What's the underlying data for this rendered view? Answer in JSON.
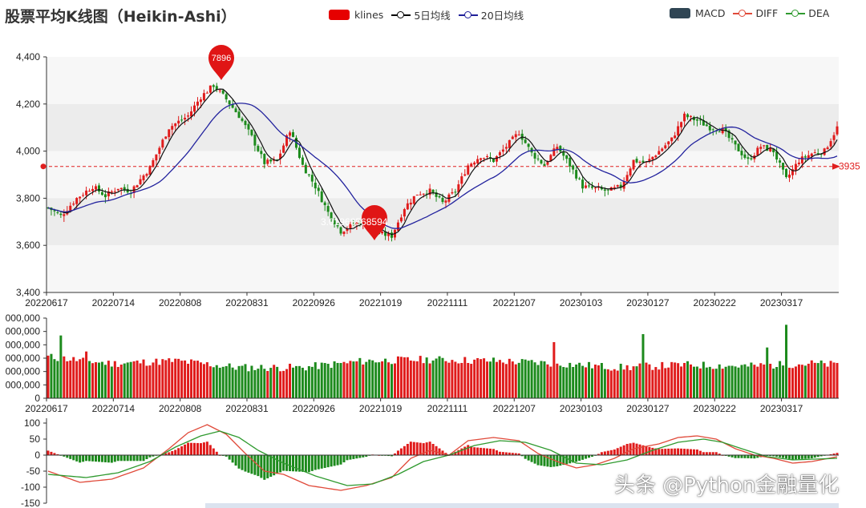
{
  "title": "股票平均K线图（Heikin-Ashi）",
  "legend_top": [
    {
      "name": "klines",
      "swatch": "rect",
      "color": "#e60000"
    },
    {
      "name": "5日均线",
      "swatch": "line",
      "color": "#000000"
    },
    {
      "name": "20日均线",
      "swatch": "line",
      "color": "#1f1f99"
    }
  ],
  "legend_right": [
    {
      "name": "MACD",
      "swatch": "rect",
      "color": "#2f4554"
    },
    {
      "name": "DIFF",
      "swatch": "line",
      "color": "#e04a3a"
    },
    {
      "name": "DEA",
      "swatch": "line",
      "color": "#2f9a2f"
    }
  ],
  "watermark": "头条 @Python金融量化",
  "chart_data": {
    "type": "candlestick",
    "x_tick_labels": [
      "20220617",
      "20220714",
      "20220808",
      "20220831",
      "20220926",
      "20221019",
      "20221111",
      "20221207",
      "20230103",
      "20230127",
      "20230222",
      "20230317"
    ],
    "price_axis": {
      "ticks": [
        "3,400",
        "3,600",
        "3,800",
        "4,000",
        "4,200",
        "4,400"
      ],
      "ylim": [
        3400,
        4400
      ]
    },
    "volume_axis": {
      "ticks": [
        "0",
        "000,000",
        "000,000",
        "000,000",
        "000,000",
        "000,000",
        "000,000"
      ],
      "ylim": [
        0,
        600
      ]
    },
    "macd_axis": {
      "ticks": [
        "100",
        "50",
        "0",
        "-50",
        "-100",
        "-150"
      ],
      "ylim": [
        -150,
        100
      ]
    },
    "annotations": {
      "max_point": "7896",
      "min_point": "",
      "markline_value": "3935",
      "overlay_text": "3.01968568594..."
    },
    "price_anchors": [
      [
        0,
        3760
      ],
      [
        4,
        3725
      ],
      [
        9,
        3800
      ],
      [
        14,
        3850
      ],
      [
        18,
        3810
      ],
      [
        22,
        3845
      ],
      [
        26,
        3830
      ],
      [
        32,
        3930
      ],
      [
        38,
        4100
      ],
      [
        44,
        4150
      ],
      [
        48,
        4230
      ],
      [
        52,
        4280
      ],
      [
        56,
        4220
      ],
      [
        60,
        4150
      ],
      [
        64,
        4060
      ],
      [
        68,
        3950
      ],
      [
        72,
        3960
      ],
      [
        76,
        4090
      ],
      [
        80,
        3940
      ],
      [
        84,
        3850
      ],
      [
        88,
        3740
      ],
      [
        92,
        3660
      ],
      [
        96,
        3690
      ],
      [
        100,
        3700
      ],
      [
        104,
        3650
      ],
      [
        108,
        3640
      ],
      [
        112,
        3760
      ],
      [
        116,
        3820
      ],
      [
        120,
        3830
      ],
      [
        124,
        3780
      ],
      [
        128,
        3830
      ],
      [
        132,
        3940
      ],
      [
        136,
        3980
      ],
      [
        140,
        3960
      ],
      [
        144,
        4020
      ],
      [
        148,
        4080
      ],
      [
        152,
        3990
      ],
      [
        156,
        3940
      ],
      [
        160,
        4020
      ],
      [
        164,
        3940
      ],
      [
        168,
        3850
      ],
      [
        172,
        3840
      ],
      [
        176,
        3830
      ],
      [
        180,
        3850
      ],
      [
        184,
        3960
      ],
      [
        188,
        3950
      ],
      [
        192,
        4000
      ],
      [
        196,
        4050
      ],
      [
        200,
        4150
      ],
      [
        204,
        4130
      ],
      [
        208,
        4100
      ],
      [
        212,
        4090
      ],
      [
        216,
        4020
      ],
      [
        220,
        3960
      ],
      [
        224,
        4020
      ],
      [
        228,
        4000
      ],
      [
        232,
        3880
      ],
      [
        236,
        3960
      ],
      [
        240,
        3990
      ],
      [
        244,
        4000
      ],
      [
        248,
        4100
      ]
    ],
    "volume_anchors": [
      [
        0,
        310
      ],
      [
        20,
        260
      ],
      [
        40,
        280
      ],
      [
        60,
        230
      ],
      [
        80,
        230
      ],
      [
        100,
        280
      ],
      [
        120,
        290
      ],
      [
        140,
        280
      ],
      [
        160,
        260
      ],
      [
        180,
        230
      ],
      [
        200,
        250
      ],
      [
        220,
        240
      ],
      [
        240,
        260
      ],
      [
        248,
        250
      ]
    ],
    "diff_anchors": [
      [
        0,
        -50
      ],
      [
        10,
        -85
      ],
      [
        20,
        -75
      ],
      [
        30,
        -40
      ],
      [
        38,
        20
      ],
      [
        44,
        70
      ],
      [
        50,
        95
      ],
      [
        56,
        65
      ],
      [
        62,
        5
      ],
      [
        68,
        -50
      ],
      [
        74,
        -60
      ],
      [
        82,
        -95
      ],
      [
        92,
        -110
      ],
      [
        100,
        -95
      ],
      [
        108,
        -70
      ],
      [
        114,
        -10
      ],
      [
        120,
        15
      ],
      [
        126,
        0
      ],
      [
        132,
        45
      ],
      [
        140,
        55
      ],
      [
        148,
        45
      ],
      [
        154,
        5
      ],
      [
        160,
        -20
      ],
      [
        166,
        -40
      ],
      [
        172,
        -30
      ],
      [
        178,
        -10
      ],
      [
        184,
        20
      ],
      [
        192,
        35
      ],
      [
        198,
        55
      ],
      [
        204,
        60
      ],
      [
        210,
        50
      ],
      [
        216,
        20
      ],
      [
        222,
        0
      ],
      [
        228,
        -10
      ],
      [
        234,
        -25
      ],
      [
        240,
        -20
      ],
      [
        248,
        -5
      ]
    ],
    "dea_anchors": [
      [
        0,
        -60
      ],
      [
        12,
        -70
      ],
      [
        22,
        -55
      ],
      [
        32,
        -20
      ],
      [
        40,
        25
      ],
      [
        48,
        60
      ],
      [
        54,
        75
      ],
      [
        60,
        55
      ],
      [
        66,
        15
      ],
      [
        74,
        -25
      ],
      [
        84,
        -65
      ],
      [
        94,
        -95
      ],
      [
        102,
        -90
      ],
      [
        110,
        -60
      ],
      [
        118,
        -20
      ],
      [
        126,
        0
      ],
      [
        134,
        30
      ],
      [
        142,
        45
      ],
      [
        150,
        40
      ],
      [
        158,
        15
      ],
      [
        166,
        -25
      ],
      [
        174,
        -30
      ],
      [
        182,
        -15
      ],
      [
        190,
        15
      ],
      [
        198,
        40
      ],
      [
        206,
        50
      ],
      [
        212,
        40
      ],
      [
        218,
        20
      ],
      [
        226,
        -5
      ],
      [
        234,
        -15
      ],
      [
        248,
        -10
      ]
    ]
  }
}
